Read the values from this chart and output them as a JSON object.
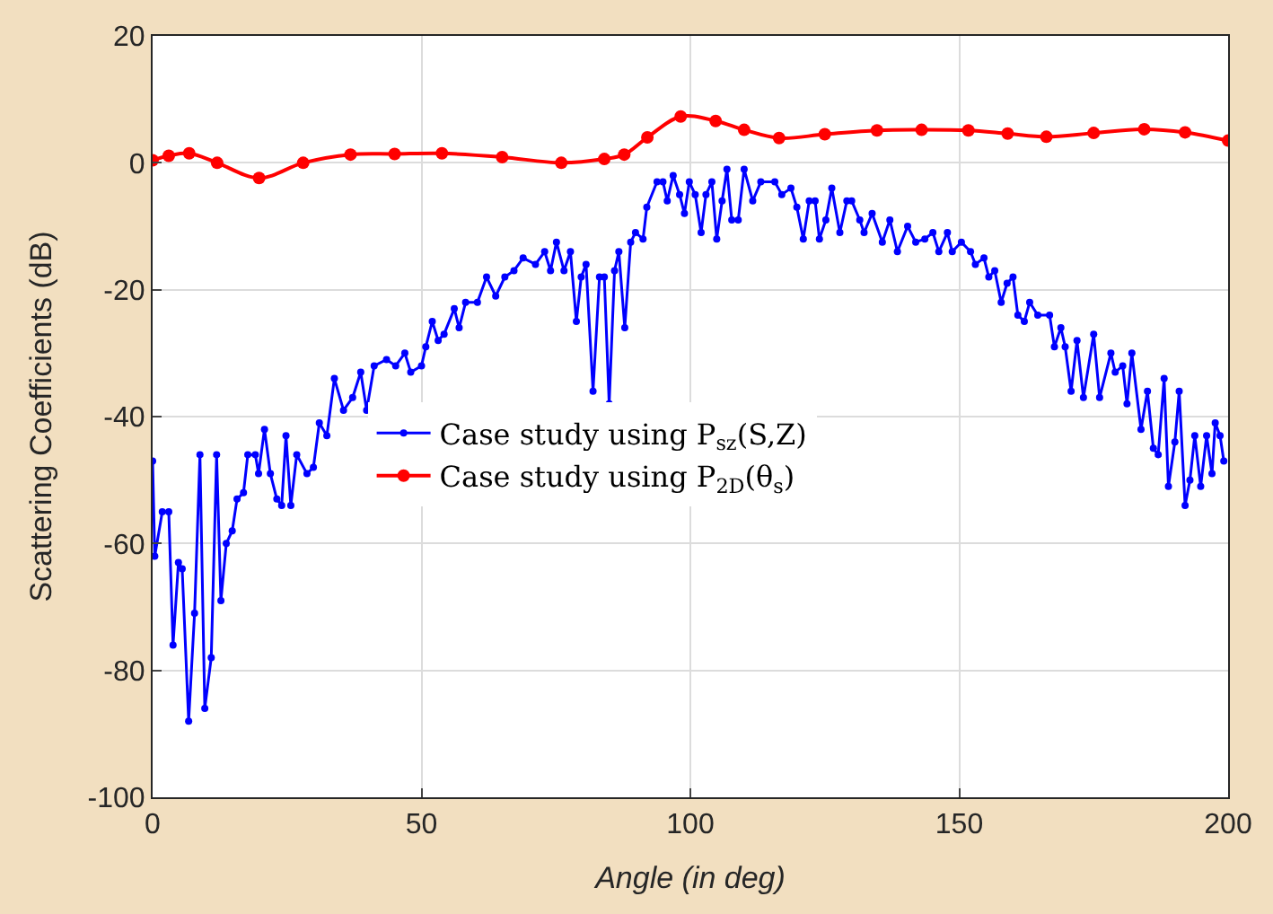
{
  "chart_data": {
    "type": "line",
    "xlabel": "Angle (in deg)",
    "ylabel": "Scattering Coefficients (dB)",
    "xlim": [
      0,
      200
    ],
    "xticks": [
      0,
      50,
      100,
      150,
      200
    ],
    "ylim": [
      -100,
      20
    ],
    "yticks": [
      -100,
      -80,
      -60,
      -40,
      -20,
      0,
      20
    ],
    "grid": true,
    "legend": "center",
    "marker": "circle",
    "line_style": "solid",
    "series": [
      {
        "name": "Case study using P$_{sz}$(S,Z)",
        "color": "#0000ff",
        "x": [
          0,
          0.4,
          1.8,
          3.0,
          3.8,
          4.8,
          5.5,
          6.7,
          7.8,
          8.8,
          9.7,
          10.9,
          11.9,
          12.7,
          13.7,
          14.8,
          15.7,
          16.9,
          17.7,
          19.1,
          19.7,
          20.8,
          21.9,
          23.1,
          24,
          24.8,
          25.7,
          26.8,
          28.7,
          29.9,
          31,
          32.4,
          33.8,
          35.5,
          37.2,
          38.7,
          39.8,
          41.2,
          43.5,
          45.2,
          46.9,
          48,
          50,
          50.8,
          52,
          53.1,
          54.2,
          56.1,
          57,
          58.2,
          60.4,
          62.1,
          63.8,
          65.5,
          67.2,
          68.9,
          71.2,
          72.9,
          74,
          75.1,
          76.5,
          77.7,
          78.8,
          79.7,
          80.6,
          81.9,
          83.1,
          84,
          84.9,
          85.9,
          86.7,
          87.8,
          88.9,
          89.8,
          91.2,
          91.9,
          93.8,
          94.9,
          95.7,
          96.8,
          98,
          98.9,
          99.8,
          100.9,
          102,
          102.9,
          104,
          104.9,
          105.9,
          106.8,
          107.7,
          108.9,
          110,
          111.6,
          113.1,
          115.7,
          117,
          118.7,
          119.8,
          121,
          122.1,
          123.2,
          124,
          125.2,
          126.3,
          127.8,
          129.1,
          130,
          131.5,
          132.3,
          133.8,
          135.7,
          137.1,
          138.5,
          140.4,
          141.9,
          143.6,
          145.1,
          146.2,
          147.8,
          148.7,
          150.4,
          152.1,
          153,
          154.6,
          155.5,
          156.6,
          157.8,
          158.9,
          160,
          160.9,
          162.1,
          163.1,
          164.6,
          166.8,
          167.7,
          168.9,
          169.7,
          170.8,
          171.9,
          173.1,
          175,
          176.1,
          178.2,
          179,
          180.4,
          181.2,
          182.1,
          183.8,
          185,
          186.1,
          187,
          188.1,
          188.9,
          190.1,
          190.9,
          192,
          192.9,
          193.8,
          194.9,
          196,
          197,
          197.6,
          198.5,
          199.2
        ],
        "values": [
          -47,
          -62,
          -55,
          -55,
          -76,
          -63,
          -64,
          -88,
          -71,
          -46,
          -86,
          -78,
          -46,
          -69,
          -60,
          -58,
          -53,
          -52,
          -46,
          -46,
          -49,
          -42,
          -49,
          -53,
          -54,
          -43,
          -54,
          -46,
          -49,
          -48,
          -41,
          -43,
          -34,
          -39,
          -37,
          -33,
          -39,
          -32,
          -31,
          -32,
          -30,
          -33,
          -32,
          -29,
          -25,
          -28,
          -27,
          -23,
          -26,
          -22,
          -22,
          -18,
          -21,
          -18,
          -17,
          -15,
          -16,
          -14,
          -17,
          -12.5,
          -17,
          -14,
          -25,
          -18,
          -16,
          -36,
          -18,
          -18,
          -38,
          -17,
          -14,
          -26,
          -12.5,
          -11,
          -12,
          -7,
          -3,
          -3,
          -6,
          -2,
          -5,
          -8,
          -3,
          -5,
          -11,
          -5,
          -3,
          -12,
          -6,
          -1,
          -9,
          -9,
          -1,
          -6,
          -3,
          -3,
          -5,
          -4,
          -7,
          -12,
          -6,
          -6,
          -12,
          -9,
          -4,
          -11,
          -6,
          -6,
          -9,
          -11,
          -8,
          -12.5,
          -9,
          -14,
          -10,
          -12.5,
          -12,
          -11,
          -14,
          -11,
          -14,
          -12.5,
          -14,
          -16,
          -15,
          -18,
          -17,
          -22,
          -19,
          -18,
          -24,
          -25,
          -22,
          -24,
          -24,
          -29,
          -26,
          -29,
          -36,
          -28,
          -37,
          -27,
          -37,
          -30,
          -33,
          -32,
          -38,
          -30,
          -42,
          -36,
          -45,
          -46,
          -34,
          -51,
          -44,
          -36,
          -54,
          -50,
          -43,
          -51,
          -43,
          -49,
          -41,
          -43,
          -47
        ]
      },
      {
        "name": "Case study using P$_{2D}$(θ$_{s}$)",
        "color": "#ff0000",
        "x": [
          0,
          3,
          6.8,
          12,
          19.8,
          28,
          36.8,
          45,
          53.8,
          65,
          76,
          84,
          87.7,
          92,
          98.2,
          104.7,
          110,
          116.5,
          125,
          134.7,
          143,
          151.7,
          159,
          166.2,
          175,
          184.4,
          192,
          200
        ],
        "values": [
          0.4,
          1.1,
          1.5,
          0,
          -2.4,
          0,
          1.3,
          1.4,
          1.5,
          0.9,
          0,
          0.6,
          1.3,
          4,
          7.3,
          6.6,
          5.2,
          3.9,
          4.5,
          5.1,
          5.2,
          5.1,
          4.6,
          4.1,
          4.7,
          5.3,
          4.8,
          3.5
        ]
      }
    ]
  }
}
